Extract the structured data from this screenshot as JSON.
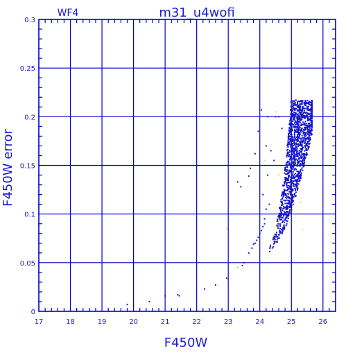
{
  "chart_data": {
    "type": "scatter",
    "title": "m31_u4wofi",
    "label_left": "WF4",
    "xlabel": "F450W",
    "ylabel": "F450W error",
    "xlim": [
      17,
      26.4
    ],
    "ylim": [
      0,
      0.3
    ],
    "xticks": [
      17,
      18,
      19,
      20,
      21,
      22,
      23,
      24,
      25,
      26
    ],
    "yticks": [
      0,
      0.05,
      0.1,
      0.15,
      0.2,
      0.25,
      0.3
    ],
    "ytick_labels": [
      "0",
      "0.05",
      "0.1",
      "0.15",
      "0.2",
      "0.25",
      "0.3"
    ],
    "grid": true,
    "colors": {
      "axis": "#0000c8",
      "text": "#1a1ad6",
      "points": "#1515cc",
      "outliers": "#f2d84a"
    },
    "series": [
      {
        "color": "#1515cc",
        "points": [
          [
            19.8,
            0.007
          ],
          [
            20.5,
            0.01
          ],
          [
            21.0,
            0.016
          ],
          [
            21.4,
            0.017
          ],
          [
            21.45,
            0.016
          ],
          [
            22.25,
            0.023
          ],
          [
            22.6,
            0.027
          ],
          [
            22.95,
            0.034
          ],
          [
            23.3,
            0.045
          ],
          [
            23.45,
            0.047
          ],
          [
            23.5,
            0.05
          ],
          [
            23.3,
            0.133
          ],
          [
            23.4,
            0.128
          ],
          [
            23.65,
            0.139
          ],
          [
            23.7,
            0.147
          ],
          [
            23.85,
            0.162
          ],
          [
            23.95,
            0.185
          ],
          [
            24.05,
            0.207
          ],
          [
            24.2,
            0.17
          ],
          [
            24.25,
            0.2
          ],
          [
            24.35,
            0.165
          ],
          [
            24.45,
            0.155
          ],
          [
            24.5,
            0.2
          ],
          [
            24.6,
            0.2
          ],
          [
            24.7,
            0.188
          ],
          [
            24.1,
            0.12
          ],
          [
            24.2,
            0.105
          ],
          [
            24.3,
            0.11
          ],
          [
            24.15,
            0.095
          ],
          [
            24.25,
            0.14
          ],
          [
            23.65,
            0.06
          ],
          [
            23.75,
            0.065
          ],
          [
            23.8,
            0.069
          ],
          [
            23.85,
            0.07
          ],
          [
            23.9,
            0.073
          ],
          [
            23.95,
            0.076
          ],
          [
            24.0,
            0.08
          ],
          [
            24.05,
            0.083
          ],
          [
            24.1,
            0.087
          ],
          [
            24.15,
            0.09
          ]
        ]
      },
      {
        "color": "#f2d84a",
        "points": [
          [
            22.95,
            0.085
          ],
          [
            23.3,
            0.045
          ],
          [
            24.15,
            0.155
          ],
          [
            24.5,
            0.205
          ],
          [
            25.3,
            0.112
          ],
          [
            25.35,
            0.084
          ],
          [
            24.6,
            0.14
          ]
        ]
      }
    ],
    "dense_band": {
      "description": "main locus",
      "color": "#1515cc",
      "mag_range": [
        23.7,
        25.65
      ],
      "err_range": [
        0.06,
        0.217
      ]
    }
  }
}
